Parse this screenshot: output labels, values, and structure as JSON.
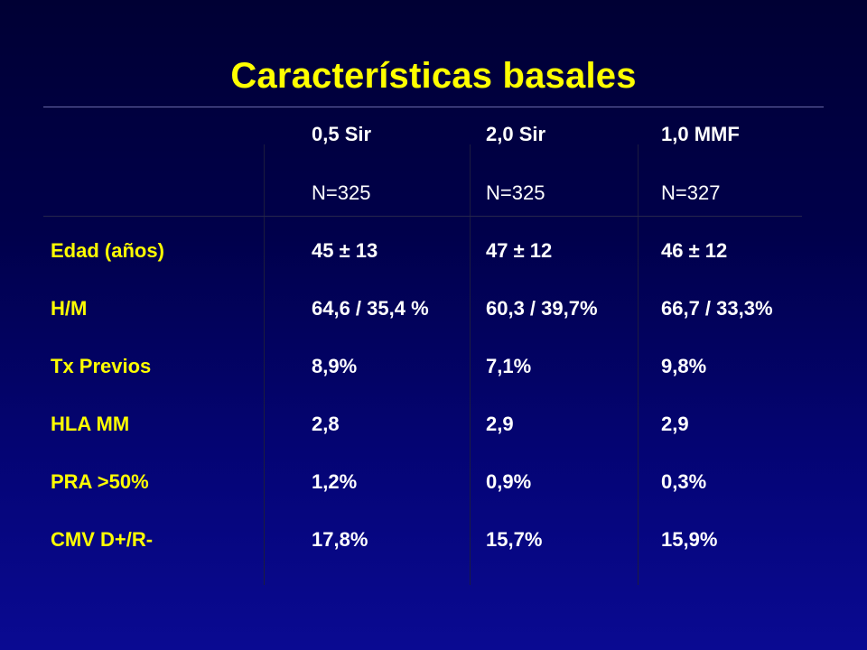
{
  "title": "Características basales",
  "columns": [
    {
      "name": "0,5 Sir",
      "n": "N=325"
    },
    {
      "name": "2,0 Sir",
      "n": "N=325"
    },
    {
      "name": "1,0 MMF",
      "n": "N=327"
    }
  ],
  "rows": [
    {
      "label": "Edad (años)",
      "values": [
        "45 ± 13",
        "47 ± 12",
        "46 ± 12"
      ]
    },
    {
      "label": "H/M",
      "values": [
        "64,6 / 35,4 %",
        "60,3 / 39,7%",
        "66,7 / 33,3%"
      ]
    },
    {
      "label": "Tx Previos",
      "values": [
        "8,9%",
        "7,1%",
        "9,8%"
      ]
    },
    {
      "label": "HLA MM",
      "values": [
        "2,8",
        "2,9",
        "2,9"
      ]
    },
    {
      "label": "PRA >50%",
      "values": [
        "1,2%",
        "0,9%",
        "0,3%"
      ]
    },
    {
      "label": "CMV D+/R-",
      "values": [
        "17,8%",
        "15,7%",
        "15,9%"
      ]
    }
  ],
  "colors": {
    "background_top": "#000034",
    "background_bottom": "#0a0a92",
    "title": "#ffff00",
    "row_label": "#ffff00",
    "cell_text": "#ffffff"
  }
}
